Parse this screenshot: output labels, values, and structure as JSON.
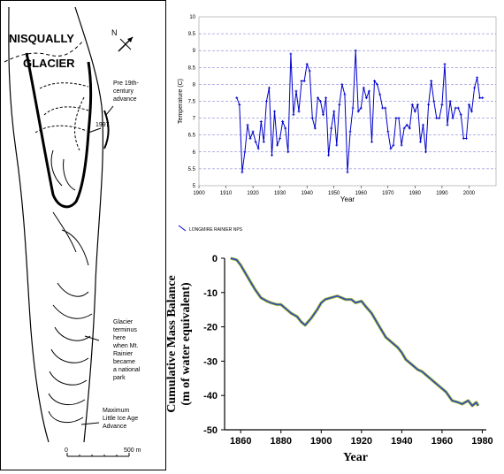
{
  "map": {
    "title_line1": "NISQUALLY",
    "title_line2": "GLACIER",
    "north": "N",
    "ann_pre19_1": "Pre 19th-",
    "ann_pre19_2": "century",
    "ann_pre19_3": "advance",
    "ann_1997": "1997",
    "ann_term_1": "Glacier",
    "ann_term_2": "terminus",
    "ann_term_3": "here",
    "ann_term_4": "when Mt.",
    "ann_term_5": "Rainier",
    "ann_term_6": "became",
    "ann_term_7": "a national",
    "ann_term_8": "park",
    "ann_max_1": "Maximum",
    "ann_max_2": "Little Ice Age",
    "ann_max_3": "Advance",
    "scale_0": "0",
    "scale_500": "500 m"
  },
  "chart_data": [
    {
      "type": "line",
      "title": "",
      "xlabel": "Year",
      "ylabel": "Temperature (C)",
      "xlim": [
        1900,
        2010
      ],
      "ylim": [
        5,
        10
      ],
      "xticks": [
        "1900",
        "1910",
        "1920",
        "1930",
        "1940",
        "1950",
        "1960",
        "1970",
        "1980",
        "1990",
        "2000"
      ],
      "yticks": [
        "5",
        "5.5",
        "6",
        "6.5",
        "7",
        "7.5",
        "8",
        "8.5",
        "9",
        "9.5",
        "10"
      ],
      "grid": "horizontal dashed",
      "color": "#0000cc",
      "series": [
        {
          "name": "LONGMIRE RAINIER NPS",
          "x": [
            1914,
            1915,
            1916,
            1917,
            1918,
            1919,
            1920,
            1921,
            1922,
            1923,
            1924,
            1925,
            1926,
            1927,
            1928,
            1929,
            1930,
            1931,
            1932,
            1933,
            1934,
            1935,
            1936,
            1937,
            1938,
            1939,
            1940,
            1941,
            1942,
            1943,
            1944,
            1945,
            1946,
            1947,
            1948,
            1949,
            1950,
            1951,
            1952,
            1953,
            1954,
            1955,
            1956,
            1957,
            1958,
            1959,
            1960,
            1961,
            1962,
            1963,
            1964,
            1965,
            1966,
            1967,
            1968,
            1969,
            1970,
            1971,
            1972,
            1973,
            1974,
            1975,
            1976,
            1977,
            1978,
            1979,
            1980,
            1981,
            1982,
            1983,
            1984,
            1985,
            1986,
            1987,
            1988,
            1989,
            1990,
            1991,
            1992,
            1993,
            1994,
            1995,
            1996,
            1997,
            1998,
            1999,
            2000,
            2001,
            2002,
            2003,
            2004,
            2005
          ],
          "values": [
            7.6,
            7.4,
            5.4,
            6.0,
            6.8,
            6.4,
            6.6,
            6.3,
            6.1,
            6.9,
            6.3,
            7.5,
            7.9,
            5.9,
            7.2,
            6.2,
            6.4,
            6.9,
            6.7,
            6.0,
            8.9,
            7.1,
            7.8,
            7.2,
            8.1,
            8.1,
            8.6,
            8.4,
            7.0,
            6.7,
            7.6,
            7.5,
            7.1,
            7.6,
            5.9,
            6.7,
            7.2,
            6.2,
            7.4,
            8.0,
            7.7,
            5.4,
            6.6,
            7.3,
            9.0,
            7.2,
            7.3,
            7.9,
            7.6,
            7.8,
            6.3,
            8.1,
            8.0,
            7.7,
            7.3,
            7.3,
            6.6,
            6.1,
            6.2,
            7.0,
            7.0,
            6.2,
            6.7,
            6.8,
            6.7,
            7.4,
            7.2,
            7.4,
            6.3,
            6.8,
            6.0,
            7.4,
            8.1,
            7.5,
            7.0,
            7.0,
            7.4,
            8.6,
            6.8,
            7.5,
            7.0,
            7.3,
            7.3,
            7.1,
            6.4,
            6.4,
            7.4,
            7.2,
            7.9,
            8.2,
            7.6,
            7.6
          ]
        }
      ]
    },
    {
      "type": "line",
      "title": "",
      "xlabel": "Year",
      "ylabel_line1": "Cumulative Mass Balance",
      "ylabel_line2": "(m of water equivalent)",
      "xlim": [
        1852,
        1982
      ],
      "ylim": [
        -50,
        0
      ],
      "xticks": [
        "1860",
        "1880",
        "1900",
        "1920",
        "1940",
        "1960",
        "1980"
      ],
      "yticks": [
        "0",
        "-10",
        "-20",
        "-30",
        "-40",
        "-50"
      ],
      "color": "#3355aa",
      "series": [
        {
          "x": [
            1855,
            1858,
            1860,
            1863,
            1865,
            1867,
            1870,
            1873,
            1875,
            1878,
            1880,
            1882,
            1885,
            1888,
            1890,
            1892,
            1895,
            1898,
            1900,
            1902,
            1905,
            1908,
            1910,
            1912,
            1915,
            1917,
            1920,
            1922,
            1925,
            1928,
            1930,
            1932,
            1935,
            1938,
            1940,
            1942,
            1945,
            1948,
            1950,
            1952,
            1955,
            1958,
            1960,
            1962,
            1965,
            1968,
            1970,
            1973,
            1975,
            1977,
            1978
          ],
          "values": [
            0,
            -0.5,
            -2,
            -5,
            -7,
            -9,
            -11.5,
            -12.5,
            -13,
            -13.5,
            -13.5,
            -14.5,
            -16,
            -17,
            -18.5,
            -19.5,
            -17.5,
            -15,
            -13,
            -12,
            -11.5,
            -11,
            -11.5,
            -12,
            -12,
            -13,
            -12.5,
            -14,
            -16,
            -19,
            -21,
            -23,
            -24.5,
            -26,
            -27.5,
            -29.5,
            -31,
            -32.5,
            -33,
            -34,
            -35.5,
            -37,
            -38,
            -39,
            -41.5,
            -42,
            -42.5,
            -41.5,
            -43,
            -42,
            -43
          ]
        }
      ]
    }
  ]
}
